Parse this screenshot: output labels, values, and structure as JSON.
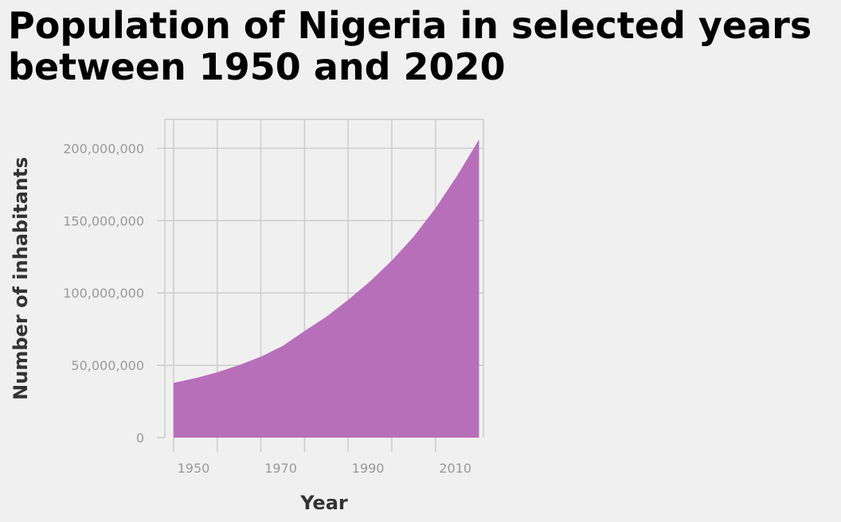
{
  "chart_data": {
    "type": "area",
    "title": "Population of Nigeria in selected years between 1950 and 2020",
    "xlabel": "Year",
    "ylabel": "Number of inhabitants",
    "x": [
      1950,
      1955,
      1960,
      1965,
      1970,
      1975,
      1980,
      1985,
      1990,
      1995,
      2000,
      2005,
      2010,
      2015,
      2020
    ],
    "series": [
      {
        "values": [
          37860000,
          41100000,
          45140000,
          50130000,
          55980000,
          63370000,
          73700000,
          83560000,
          95210000,
          107950000,
          122350000,
          138870000,
          158500000,
          181140000,
          206140000
        ]
      }
    ],
    "xlim": [
      1950,
      2020
    ],
    "ylim": [
      0,
      220000000
    ],
    "x_ticks": [
      {
        "value": 1950,
        "label": "1950"
      },
      {
        "value": 1960,
        "label": ""
      },
      {
        "value": 1970,
        "label": "1970"
      },
      {
        "value": 1980,
        "label": ""
      },
      {
        "value": 1990,
        "label": "1990"
      },
      {
        "value": 2000,
        "label": ""
      },
      {
        "value": 2010,
        "label": "2010"
      }
    ],
    "y_ticks": [
      {
        "value": 0,
        "label": "0"
      },
      {
        "value": 50000000,
        "label": "50,000,000"
      },
      {
        "value": 100000000,
        "label": "100,000,000"
      },
      {
        "value": 150000000,
        "label": "150,000,000"
      },
      {
        "value": 200000000,
        "label": "200,000,000"
      }
    ],
    "grid": true,
    "legend": false,
    "colors": {
      "fill": "#b76fba",
      "grid": "#cccccc",
      "background": "#f0f0f0"
    }
  }
}
